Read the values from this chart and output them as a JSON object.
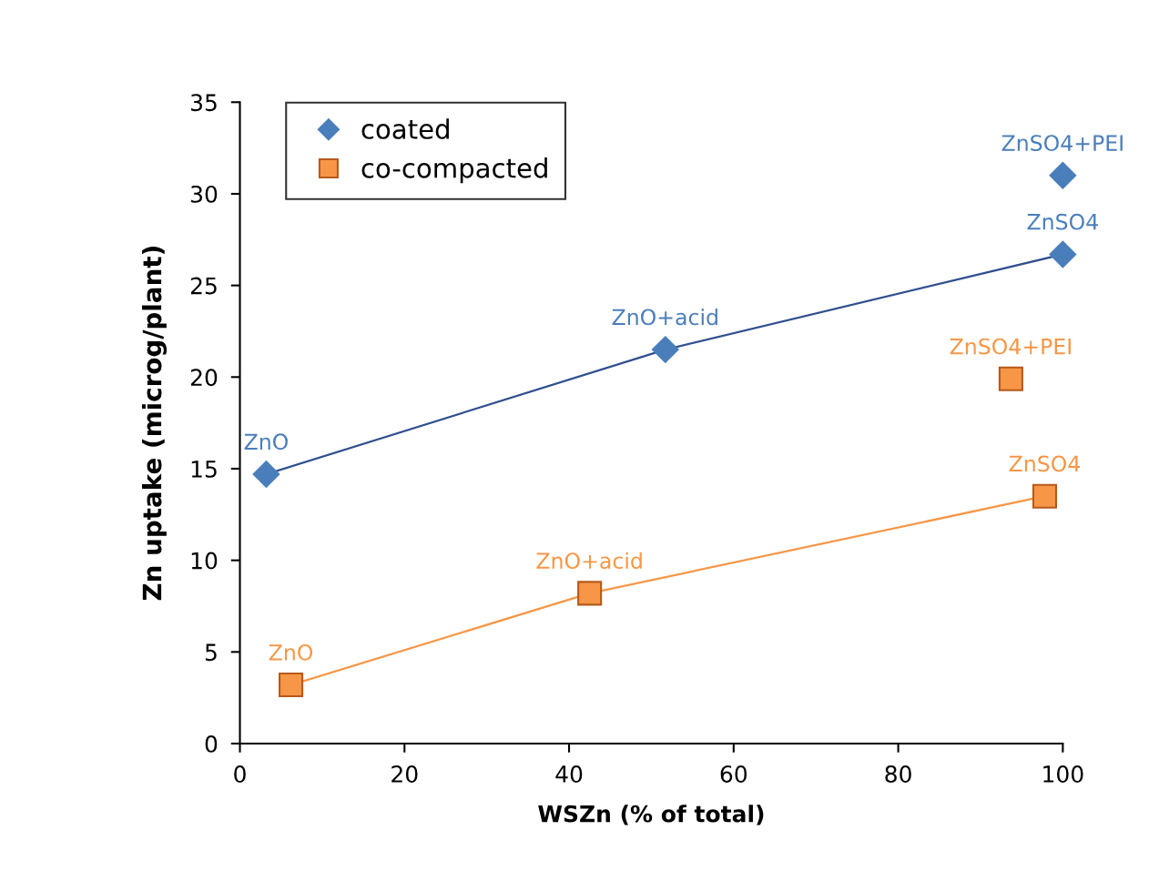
{
  "chart_data": {
    "type": "scatter",
    "xlabel": "WSZn (% of total)",
    "ylabel": "Zn uptake (microg/plant)",
    "xlim": [
      0,
      100
    ],
    "xticks": [
      0,
      20,
      40,
      60,
      80,
      100
    ],
    "ylim": [
      0,
      35
    ],
    "yticks": [
      0,
      5,
      10,
      15,
      20,
      25,
      30,
      35
    ],
    "grid": false,
    "legend": "top left",
    "series": [
      {
        "type": "line",
        "color": "#2f4f8f",
        "x": [
          3.2,
          51.7,
          100
        ],
        "values": [
          14.7,
          21.5,
          26.7
        ]
      },
      {
        "type": "line",
        "color": "#f79646",
        "x": [
          6.2,
          42.5,
          97.8
        ],
        "values": [
          3.2,
          8.2,
          13.5
        ]
      },
      {
        "name": "coated",
        "color": "#4a7ebb",
        "marker": "diamond",
        "x": [
          3.2,
          51.7,
          100,
          100
        ],
        "values": [
          14.7,
          21.5,
          26.7,
          31.0
        ],
        "value_labels": [
          "ZnO",
          "ZnO+acid",
          "ZnSO4",
          "ZnSO4+PEI"
        ]
      },
      {
        "name": "co-compacted",
        "color": "#f79646",
        "marker": "square",
        "x": [
          6.2,
          42.5,
          97.8,
          93.7
        ],
        "values": [
          3.2,
          8.2,
          13.5,
          19.9
        ],
        "value_labels": [
          "ZnO",
          "ZnO+acid",
          "ZnSO4",
          "ZnSO4+PEI"
        ]
      }
    ]
  }
}
